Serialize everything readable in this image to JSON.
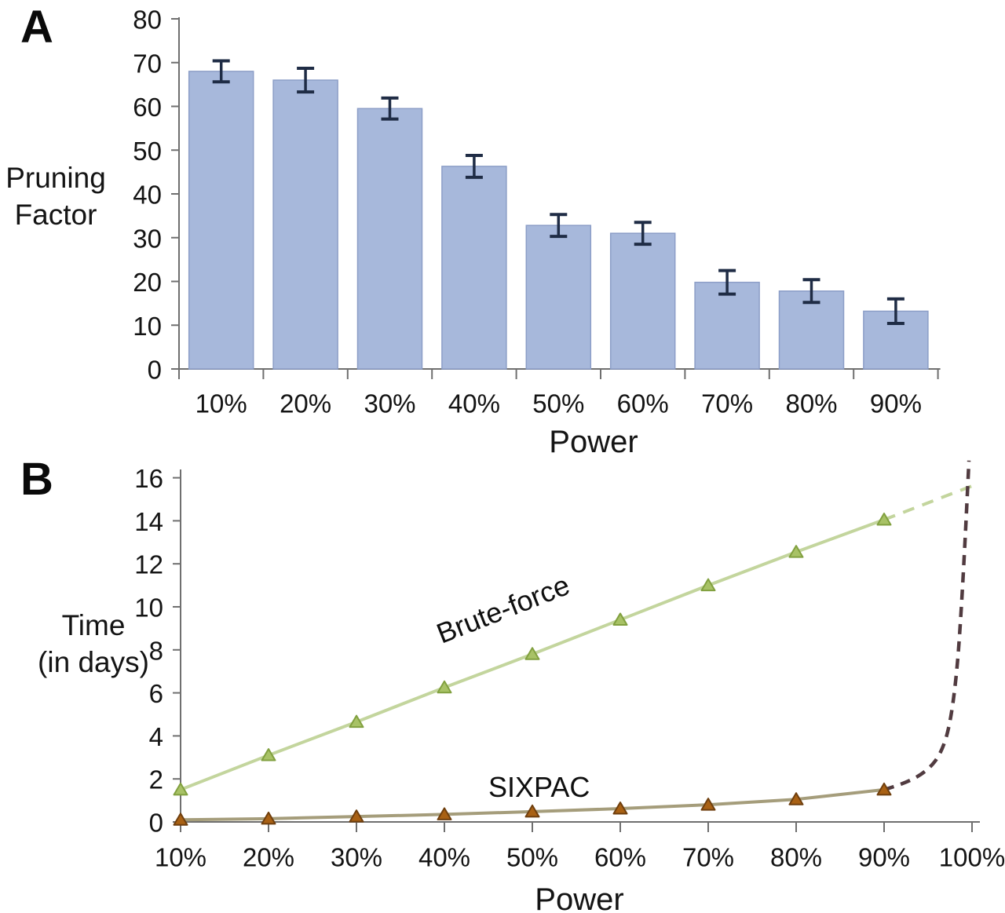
{
  "figure": {
    "panels": [
      {
        "letter": "A"
      },
      {
        "letter": "B"
      }
    ]
  },
  "colors": {
    "text": "#141414",
    "axis": "#6f6f6f",
    "bar_fill": "#a7b8db",
    "bar_border": "#8c9ec7",
    "error_bar": "#1f2c45",
    "bruteforce_line": "#c3d59d",
    "bruteforce_marker_fill": "#a8c266",
    "bruteforce_marker_border": "#81a03f",
    "sixpac_line": "#a59d7b",
    "sixpac_marker_fill": "#a96114",
    "sixpac_marker_border": "#6f3f0e",
    "sixpac_dashed": "#513b40"
  },
  "chart_data": [
    {
      "type": "bar",
      "panel": "A",
      "categories": [
        "10%",
        "20%",
        "30%",
        "40%",
        "50%",
        "60%",
        "70%",
        "80%",
        "90%"
      ],
      "values": [
        68,
        66,
        59.5,
        46.3,
        32.8,
        31,
        19.8,
        17.8,
        13.2
      ],
      "error_bars": [
        2.4,
        2.7,
        2.4,
        2.5,
        2.5,
        2.5,
        2.7,
        2.6,
        2.8
      ],
      "xlabel": "Power",
      "ylabel": "Pruning Factor",
      "ylabel_lines": [
        "Pruning",
        "Factor"
      ],
      "ylim": [
        0,
        80
      ],
      "ytick_step": 10,
      "grid": false,
      "legend": "none"
    },
    {
      "type": "line",
      "panel": "B",
      "categories": [
        "10%",
        "20%",
        "30%",
        "40%",
        "50%",
        "60%",
        "70%",
        "80%",
        "90%",
        "100%"
      ],
      "x_percent": [
        10,
        20,
        30,
        40,
        50,
        60,
        70,
        80,
        90
      ],
      "xlabel": "Power",
      "ylabel": "Time (in days)",
      "ylabel_lines": [
        "Time",
        "(in days)"
      ],
      "ylim": [
        0,
        16
      ],
      "ytick_step": 2,
      "grid": false,
      "legend": "inline-labels",
      "series": [
        {
          "name": "Brute-force",
          "marker": "triangle",
          "style": "solid",
          "values": [
            1.5,
            3.1,
            4.65,
            6.25,
            7.8,
            9.4,
            11.0,
            12.55,
            14.05
          ],
          "dashed_extension": {
            "x_percent": [
              90,
              100.5
            ],
            "values": [
              14.05,
              15.7
            ]
          }
        },
        {
          "name": "SIXPAC",
          "marker": "triangle",
          "style": "solid",
          "values": [
            0.1,
            0.15,
            0.25,
            0.35,
            0.48,
            0.62,
            0.8,
            1.05,
            1.5
          ],
          "dashed_extension": {
            "x_percent": [
              90,
              92.5,
              95,
              96.5,
              97.5,
              98.3,
              98.8,
              99.2,
              99.5,
              99.65
            ],
            "values": [
              1.5,
              1.8,
              2.4,
              3.2,
              4.5,
              7.0,
              10.0,
              13.0,
              15.5,
              16.8
            ]
          }
        }
      ]
    }
  ]
}
